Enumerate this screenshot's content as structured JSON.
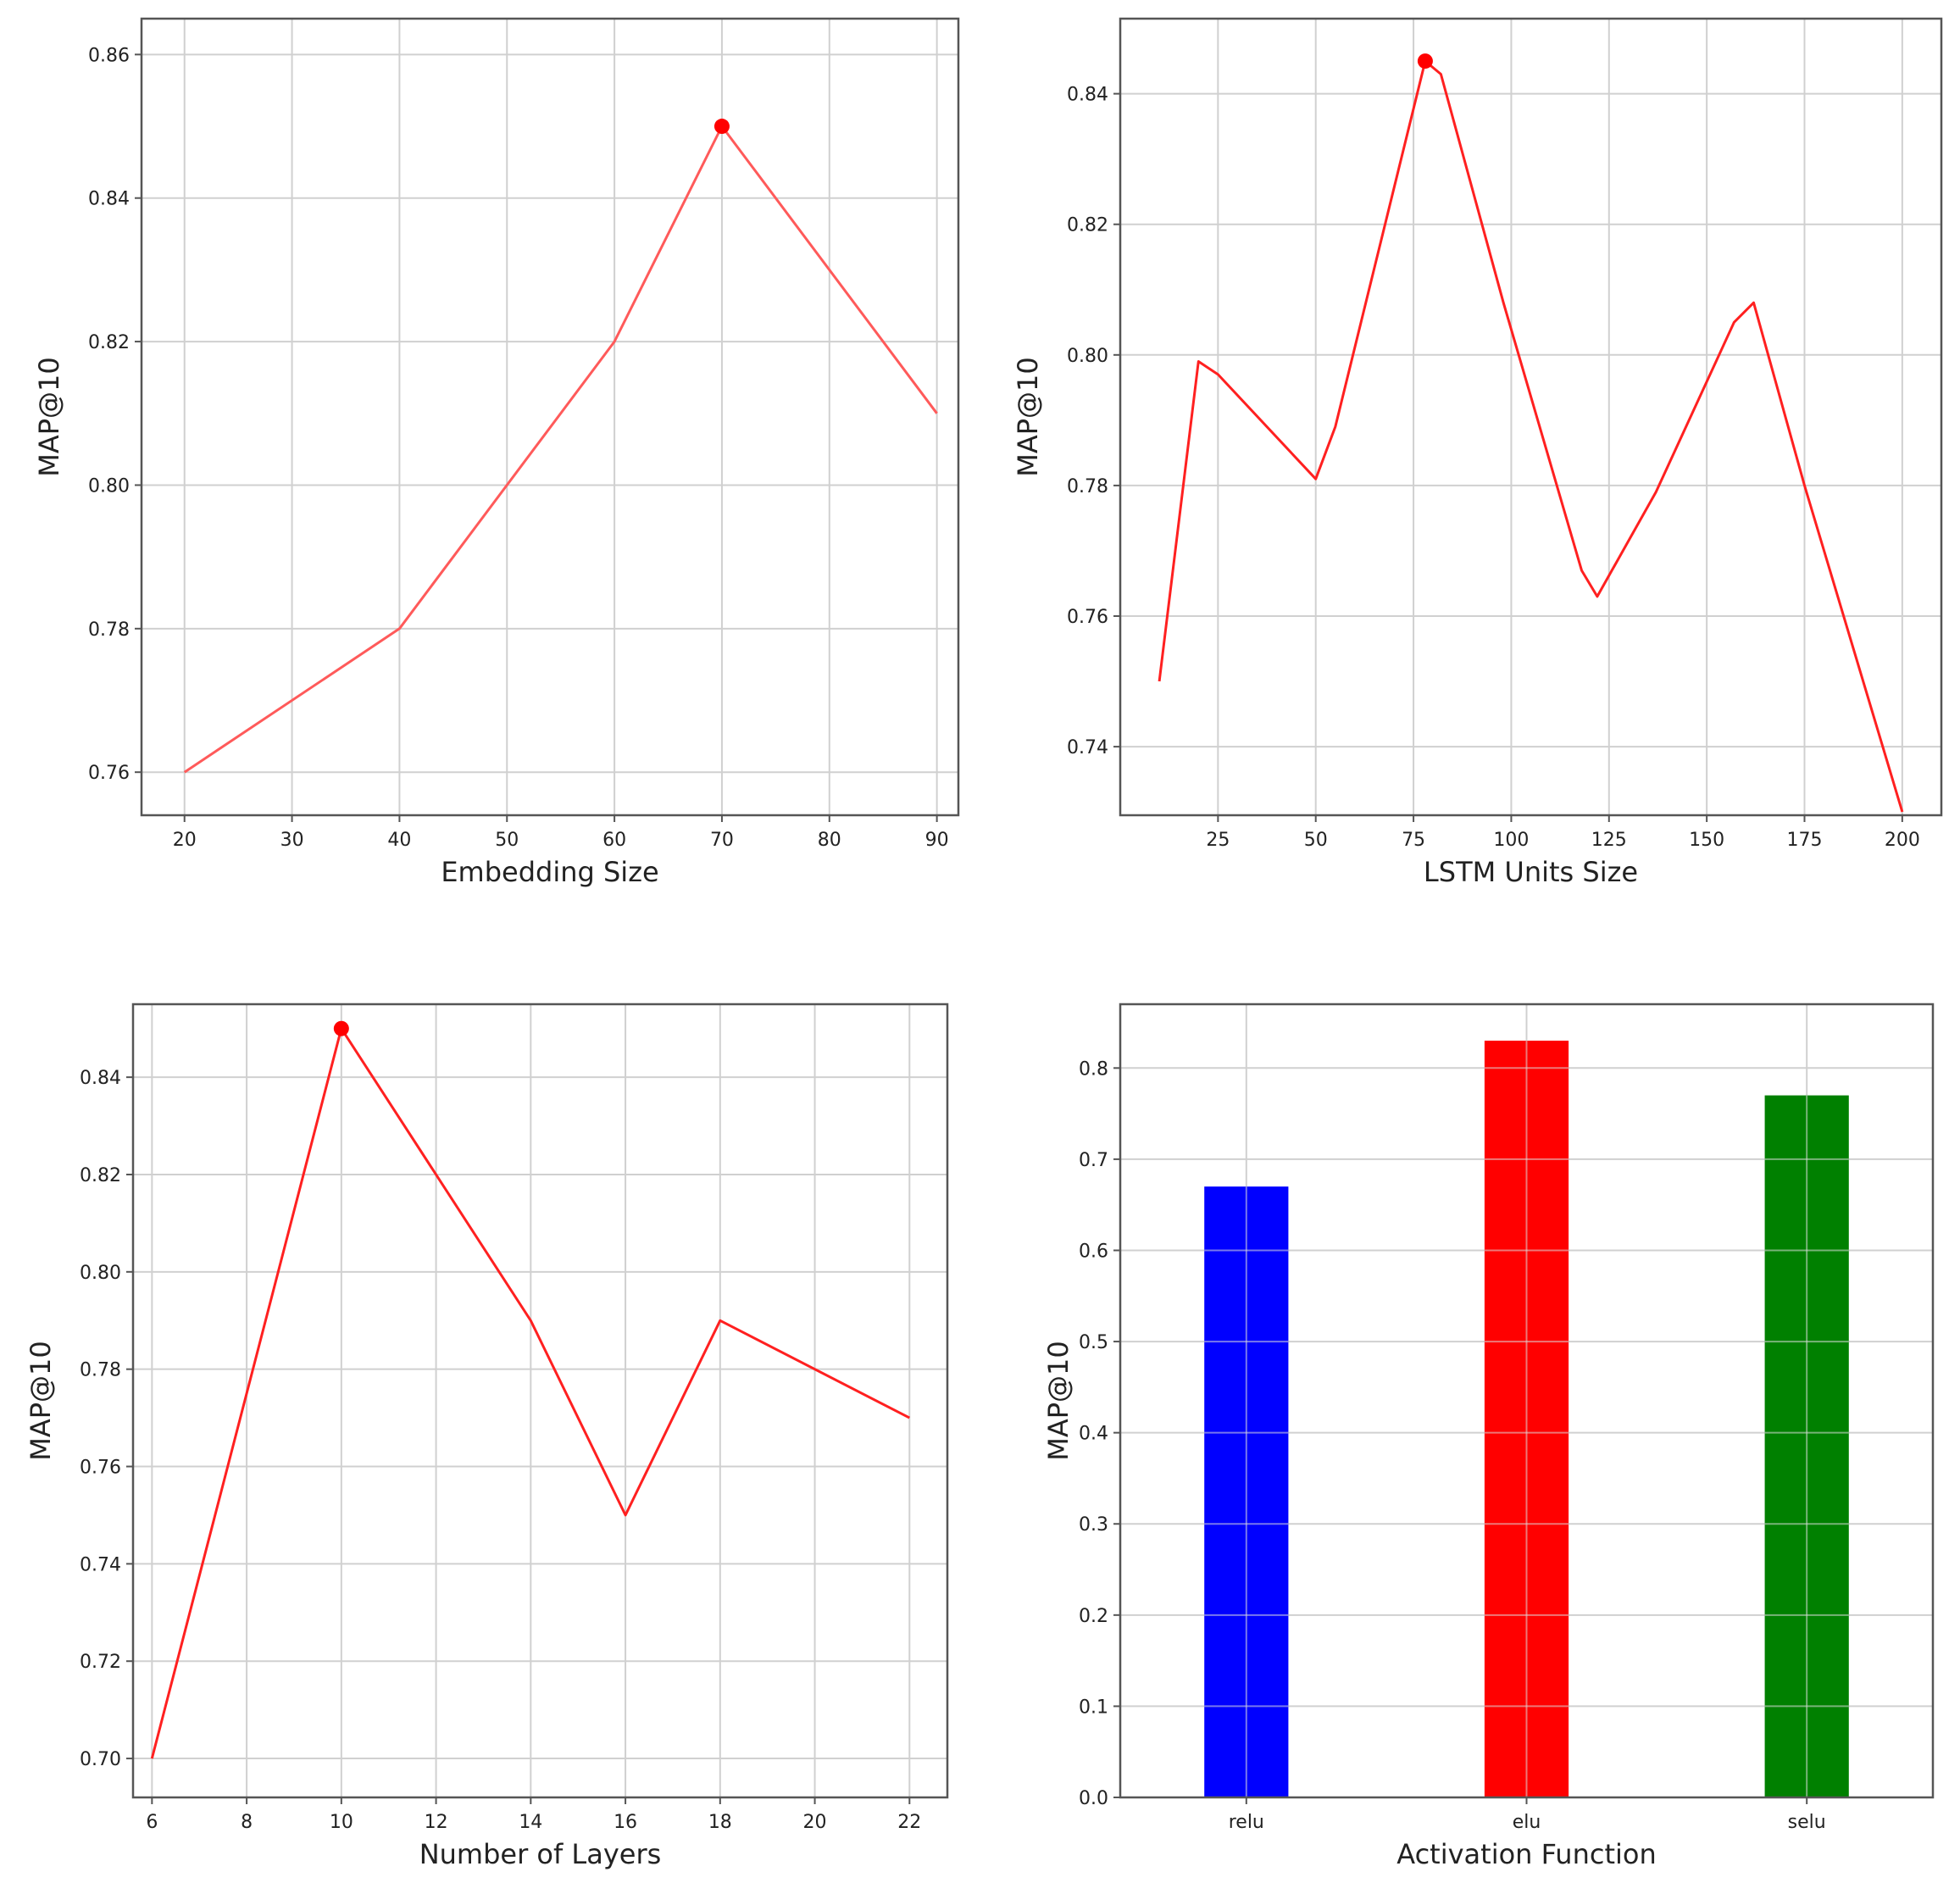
{
  "chart_data": [
    {
      "type": "line",
      "xlabel": "Embedding Size",
      "ylabel": "MAP@10",
      "xlim": [
        16,
        92
      ],
      "ylim": [
        0.754,
        0.865
      ],
      "xticks": [
        20,
        30,
        40,
        50,
        60,
        70,
        80,
        90
      ],
      "yticks": [
        0.76,
        0.78,
        0.8,
        0.82,
        0.84,
        0.86
      ],
      "ytick_labels": [
        "0.76",
        "0.78",
        "0.80",
        "0.82",
        "0.84",
        "0.86"
      ],
      "grid": true,
      "line_color": "#ff5a5a",
      "series": [
        {
          "x": [
            20,
            40,
            60,
            70,
            90
          ],
          "y": [
            0.76,
            0.78,
            0.82,
            0.85,
            0.81
          ]
        }
      ],
      "highlight": {
        "x": 70,
        "y": 0.85,
        "color": "#ff0000"
      }
    },
    {
      "type": "line",
      "xlabel": "LSTM Units Size",
      "ylabel": "MAP@10",
      "xlim": [
        0,
        210
      ],
      "ylim": [
        0.7295,
        0.8515
      ],
      "xticks": [
        25,
        50,
        75,
        100,
        125,
        150,
        175,
        200
      ],
      "yticks": [
        0.74,
        0.76,
        0.78,
        0.8,
        0.82,
        0.84
      ],
      "ytick_labels": [
        "0.74",
        "0.76",
        "0.78",
        "0.80",
        "0.82",
        "0.84"
      ],
      "grid": true,
      "line_color": "#ff2020",
      "series": [
        {
          "x": [
            10,
            20,
            25,
            50,
            55,
            78,
            82,
            98,
            118,
            122,
            137,
            157,
            162,
            175,
            200
          ],
          "y": [
            0.75,
            0.799,
            0.797,
            0.781,
            0.789,
            0.845,
            0.843,
            0.808,
            0.767,
            0.763,
            0.779,
            0.805,
            0.808,
            0.78,
            0.73
          ]
        }
      ],
      "highlight": {
        "x": 78,
        "y": 0.845,
        "color": "#ff0000"
      }
    },
    {
      "type": "line",
      "xlabel": "Number of Layers",
      "ylabel": "MAP@10",
      "xlim": [
        5.6,
        22.8
      ],
      "ylim": [
        0.692,
        0.855
      ],
      "xticks": [
        6,
        8,
        10,
        12,
        14,
        16,
        18,
        20,
        22
      ],
      "yticks": [
        0.7,
        0.72,
        0.74,
        0.76,
        0.78,
        0.8,
        0.82,
        0.84
      ],
      "ytick_labels": [
        "0.70",
        "0.72",
        "0.74",
        "0.76",
        "0.78",
        "0.80",
        "0.82",
        "0.84"
      ],
      "grid": true,
      "line_color": "#ff2020",
      "series": [
        {
          "x": [
            6,
            10,
            14,
            16,
            18,
            22
          ],
          "y": [
            0.7,
            0.85,
            0.79,
            0.75,
            0.79,
            0.77
          ]
        }
      ],
      "highlight": {
        "x": 10,
        "y": 0.85,
        "color": "#ff0000"
      }
    },
    {
      "type": "bar",
      "xlabel": "Activation Function",
      "ylabel": "MAP@10",
      "categories": [
        "relu",
        "elu",
        "selu"
      ],
      "values": [
        0.67,
        0.83,
        0.77
      ],
      "colors": [
        "#0000ff",
        "#ff0000",
        "#008000"
      ],
      "ylim": [
        0,
        0.87
      ],
      "yticks": [
        0.0,
        0.1,
        0.2,
        0.3,
        0.4,
        0.5,
        0.6,
        0.7,
        0.8
      ],
      "ytick_labels": [
        "0.0",
        "0.1",
        "0.2",
        "0.3",
        "0.4",
        "0.5",
        "0.6",
        "0.7",
        "0.8"
      ],
      "grid": true
    }
  ]
}
